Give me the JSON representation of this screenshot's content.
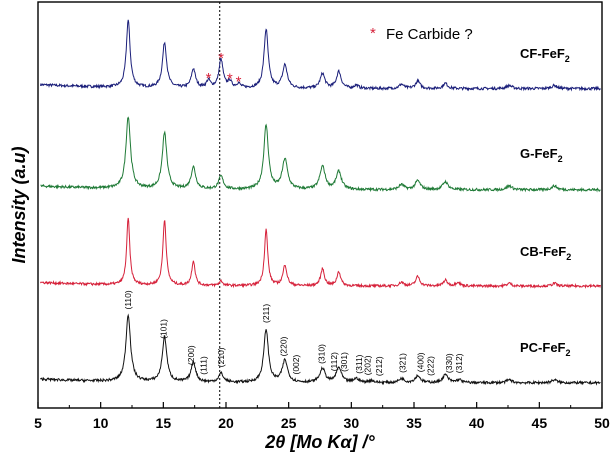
{
  "chart_data": {
    "type": "line",
    "title": "",
    "xlabel": "2θ [Mo Kα] /°",
    "ylabel": "Intensity (a.u)",
    "xlim": [
      5,
      50
    ],
    "x_ticks": [
      5,
      10,
      15,
      20,
      25,
      30,
      35,
      40,
      45,
      50
    ],
    "y_ticks_shown": false,
    "grid": false,
    "reference_line_x": 19.5,
    "annotation": {
      "symbol": "*",
      "text": "Fe Carbide ?",
      "color": "#d6213a"
    },
    "impurity_peaks_2theta": [
      18.6,
      19.6,
      20.3,
      21.0
    ],
    "series": [
      {
        "name": "CF-FeF",
        "name_subscript": "2",
        "color": "#1b1f7a",
        "baseline": 0.83,
        "peaks": [
          {
            "x": 12.2,
            "h": 0.64,
            "w": 0.18
          },
          {
            "x": 15.1,
            "h": 0.43,
            "w": 0.2
          },
          {
            "x": 17.4,
            "h": 0.18,
            "w": 0.2
          },
          {
            "x": 18.6,
            "h": 0.07,
            "w": 0.18
          },
          {
            "x": 19.6,
            "h": 0.27,
            "w": 0.2
          },
          {
            "x": 20.3,
            "h": 0.06,
            "w": 0.18
          },
          {
            "x": 21.0,
            "h": 0.04,
            "w": 0.18
          },
          {
            "x": 23.2,
            "h": 0.56,
            "w": 0.2
          },
          {
            "x": 24.7,
            "h": 0.22,
            "w": 0.22
          },
          {
            "x": 27.7,
            "h": 0.14,
            "w": 0.22
          },
          {
            "x": 29.0,
            "h": 0.16,
            "w": 0.22
          },
          {
            "x": 30.4,
            "h": 0.03,
            "w": 0.2
          },
          {
            "x": 34.0,
            "h": 0.04,
            "w": 0.22
          },
          {
            "x": 35.3,
            "h": 0.07,
            "w": 0.22
          },
          {
            "x": 37.5,
            "h": 0.05,
            "w": 0.22
          },
          {
            "x": 42.6,
            "h": 0.03,
            "w": 0.25
          },
          {
            "x": 46.2,
            "h": 0.03,
            "w": 0.25
          }
        ]
      },
      {
        "name": "G-FeF",
        "name_subscript": "2",
        "color": "#1f7a36",
        "baseline": 0.83,
        "peaks": [
          {
            "x": 12.2,
            "h": 0.72,
            "w": 0.22
          },
          {
            "x": 15.1,
            "h": 0.56,
            "w": 0.22
          },
          {
            "x": 17.4,
            "h": 0.22,
            "w": 0.22
          },
          {
            "x": 19.6,
            "h": 0.13,
            "w": 0.22
          },
          {
            "x": 23.2,
            "h": 0.64,
            "w": 0.22
          },
          {
            "x": 24.7,
            "h": 0.3,
            "w": 0.25
          },
          {
            "x": 27.7,
            "h": 0.23,
            "w": 0.25
          },
          {
            "x": 29.0,
            "h": 0.18,
            "w": 0.25
          },
          {
            "x": 34.0,
            "h": 0.05,
            "w": 0.25
          },
          {
            "x": 35.3,
            "h": 0.09,
            "w": 0.25
          },
          {
            "x": 37.5,
            "h": 0.08,
            "w": 0.25
          },
          {
            "x": 42.6,
            "h": 0.04,
            "w": 0.25
          },
          {
            "x": 46.2,
            "h": 0.04,
            "w": 0.25
          }
        ]
      },
      {
        "name": "CB-FeF",
        "name_subscript": "2",
        "color": "#d6213a",
        "baseline": 0.83,
        "peaks": [
          {
            "x": 12.2,
            "h": 0.7,
            "w": 0.15
          },
          {
            "x": 15.1,
            "h": 0.69,
            "w": 0.16
          },
          {
            "x": 17.4,
            "h": 0.26,
            "w": 0.16
          },
          {
            "x": 19.6,
            "h": 0.05,
            "w": 0.16
          },
          {
            "x": 23.2,
            "h": 0.59,
            "w": 0.16
          },
          {
            "x": 24.7,
            "h": 0.22,
            "w": 0.18
          },
          {
            "x": 27.7,
            "h": 0.18,
            "w": 0.18
          },
          {
            "x": 29.0,
            "h": 0.15,
            "w": 0.18
          },
          {
            "x": 34.0,
            "h": 0.04,
            "w": 0.2
          },
          {
            "x": 35.3,
            "h": 0.1,
            "w": 0.2
          },
          {
            "x": 37.5,
            "h": 0.06,
            "w": 0.2
          },
          {
            "x": 38.5,
            "h": 0.04,
            "w": 0.2
          },
          {
            "x": 42.6,
            "h": 0.03,
            "w": 0.2
          },
          {
            "x": 46.2,
            "h": 0.03,
            "w": 0.2
          }
        ]
      },
      {
        "name": "PC-FeF",
        "name_subscript": "2",
        "color": "#111111",
        "baseline": 0.83,
        "peaks": [
          {
            "x": 12.2,
            "h": 0.67,
            "w": 0.22
          },
          {
            "x": 15.1,
            "h": 0.45,
            "w": 0.22
          },
          {
            "x": 17.4,
            "h": 0.2,
            "w": 0.22
          },
          {
            "x": 19.6,
            "h": 0.09,
            "w": 0.22
          },
          {
            "x": 23.2,
            "h": 0.53,
            "w": 0.22
          },
          {
            "x": 24.7,
            "h": 0.22,
            "w": 0.25
          },
          {
            "x": 27.7,
            "h": 0.14,
            "w": 0.25
          },
          {
            "x": 29.0,
            "h": 0.15,
            "w": 0.25
          },
          {
            "x": 30.4,
            "h": 0.04,
            "w": 0.25
          },
          {
            "x": 31.6,
            "h": 0.02,
            "w": 0.25
          },
          {
            "x": 34.0,
            "h": 0.04,
            "w": 0.25
          },
          {
            "x": 35.3,
            "h": 0.07,
            "w": 0.25
          },
          {
            "x": 37.5,
            "h": 0.08,
            "w": 0.25
          },
          {
            "x": 38.6,
            "h": 0.03,
            "w": 0.25
          },
          {
            "x": 42.6,
            "h": 0.03,
            "w": 0.25
          },
          {
            "x": 46.2,
            "h": 0.03,
            "w": 0.25
          }
        ]
      }
    ],
    "reflections": [
      {
        "label": "(110)",
        "x": 12.2
      },
      {
        "label": "(101)",
        "x": 15.0
      },
      {
        "label": "(200)",
        "x": 17.2
      },
      {
        "label": "(111)",
        "x": 18.2
      },
      {
        "label": "(210)",
        "x": 19.6
      },
      {
        "label": "(211)",
        "x": 23.2
      },
      {
        "label": "(220)",
        "x": 24.6
      },
      {
        "label": "(002)",
        "x": 25.6
      },
      {
        "label": "(310)",
        "x": 27.6
      },
      {
        "label": "(112)",
        "x": 28.6
      },
      {
        "label": "(301)",
        "x": 29.4
      },
      {
        "label": "(311)",
        "x": 30.6
      },
      {
        "label": "(202)",
        "x": 31.3
      },
      {
        "label": "(212)",
        "x": 32.2
      },
      {
        "label": "(321)",
        "x": 34.1
      },
      {
        "label": "(400)",
        "x": 35.5
      },
      {
        "label": "(222)",
        "x": 36.3
      },
      {
        "label": "(330)",
        "x": 37.8
      },
      {
        "label": "(312)",
        "x": 38.6
      }
    ]
  }
}
